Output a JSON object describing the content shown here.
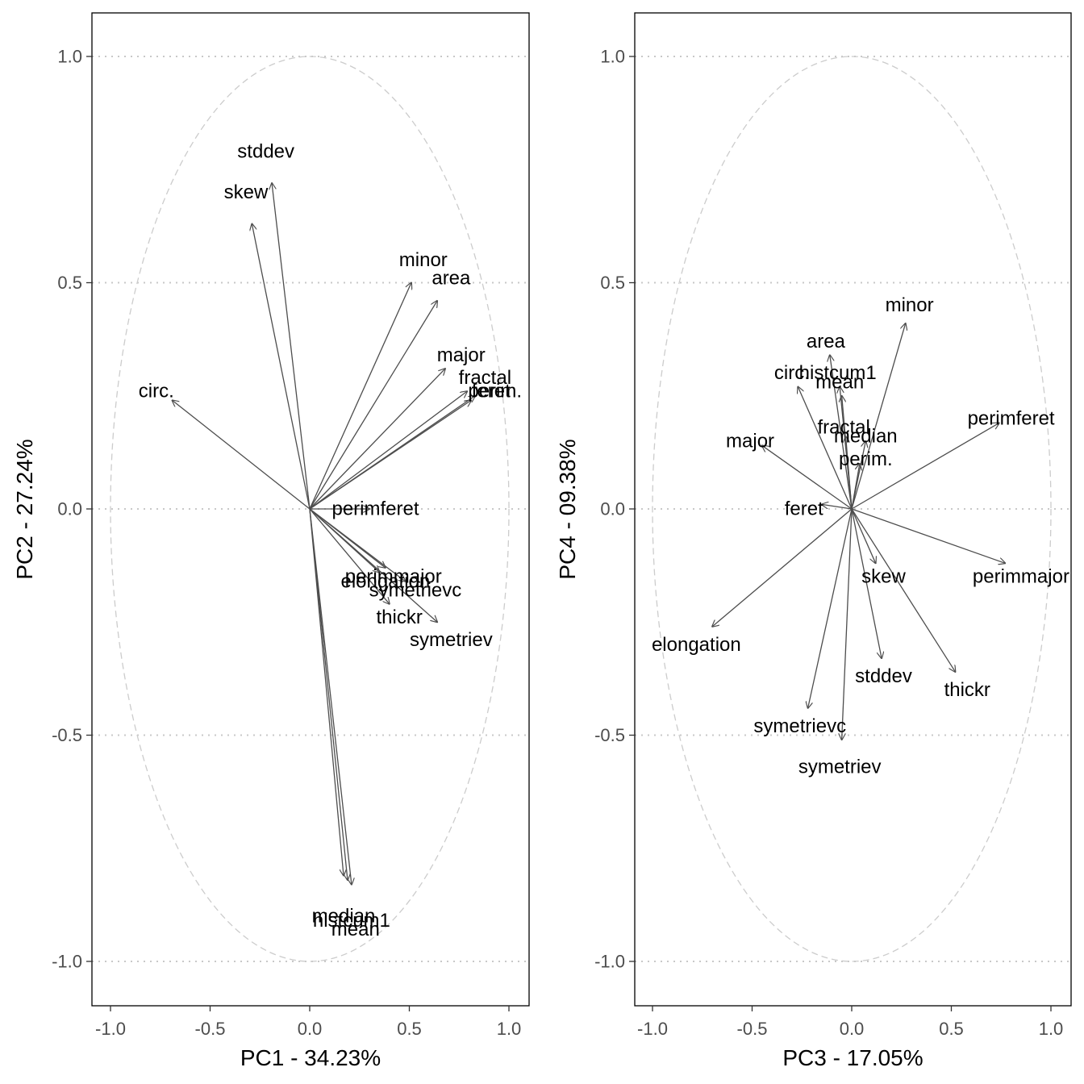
{
  "chart_data": [
    {
      "type": "scatter",
      "subtype": "pca-variable-correlation-circle",
      "xlabel": "PC1 - 34.23%",
      "ylabel": "PC2 - 27.24%",
      "xlim": [
        -1.1,
        1.1
      ],
      "ylim": [
        -1.1,
        1.1
      ],
      "xticks": [
        "-1.0",
        "-0.5",
        "0.0",
        "0.5",
        "1.0"
      ],
      "yticks": [
        "-1.0",
        "-0.5",
        "0.0",
        "0.5",
        "1.0"
      ],
      "grid": "horizontal dotted",
      "variables": [
        {
          "name": "stddev",
          "x": -0.19,
          "y": 0.72,
          "lx": -0.22,
          "ly": 0.79
        },
        {
          "name": "skew",
          "x": -0.29,
          "y": 0.63,
          "lx": -0.32,
          "ly": 0.7
        },
        {
          "name": "minor",
          "x": 0.51,
          "y": 0.5,
          "lx": 0.57,
          "ly": 0.55
        },
        {
          "name": "area",
          "x": 0.64,
          "y": 0.46,
          "lx": 0.71,
          "ly": 0.51
        },
        {
          "name": "major",
          "x": 0.68,
          "y": 0.31,
          "lx": 0.76,
          "ly": 0.34
        },
        {
          "name": "fractal",
          "x": 0.79,
          "y": 0.26,
          "lx": 0.88,
          "ly": 0.29
        },
        {
          "name": "feret",
          "x": 0.81,
          "y": 0.24,
          "lx": 0.91,
          "ly": 0.26
        },
        {
          "name": "perim.",
          "x": 0.83,
          "y": 0.25,
          "lx": 0.93,
          "ly": 0.26
        },
        {
          "name": "circ.",
          "x": -0.69,
          "y": 0.24,
          "lx": -0.77,
          "ly": 0.26
        },
        {
          "name": "perimferet",
          "x": 0.3,
          "y": 0.0,
          "lx": 0.33,
          "ly": 0.0
        },
        {
          "name": "perimmajor",
          "x": 0.38,
          "y": -0.13,
          "lx": 0.42,
          "ly": -0.15
        },
        {
          "name": "elongation",
          "x": 0.35,
          "y": -0.14,
          "lx": 0.38,
          "ly": -0.16
        },
        {
          "name": "symetrievc",
          "x": 0.48,
          "y": -0.16,
          "lx": 0.53,
          "ly": -0.18
        },
        {
          "name": "thickr",
          "x": 0.4,
          "y": -0.21,
          "lx": 0.45,
          "ly": -0.24
        },
        {
          "name": "symetriev",
          "x": 0.64,
          "y": -0.25,
          "lx": 0.71,
          "ly": -0.29
        },
        {
          "name": "median",
          "x": 0.17,
          "y": -0.81,
          "lx": 0.17,
          "ly": -0.9
        },
        {
          "name": "histcum1",
          "x": 0.19,
          "y": -0.82,
          "lx": 0.21,
          "ly": -0.91
        },
        {
          "name": "mean",
          "x": 0.21,
          "y": -0.83,
          "lx": 0.23,
          "ly": -0.93
        }
      ]
    },
    {
      "type": "scatter",
      "subtype": "pca-variable-correlation-circle",
      "xlabel": "PC3 - 17.05%",
      "ylabel": "PC4 - 09.38%",
      "xlim": [
        -1.1,
        1.1
      ],
      "ylim": [
        -1.1,
        1.1
      ],
      "xticks": [
        "-1.0",
        "-0.5",
        "0.0",
        "0.5",
        "1.0"
      ],
      "yticks": [
        "-1.0",
        "-0.5",
        "0.0",
        "0.5",
        "1.0"
      ],
      "grid": "horizontal dotted",
      "variables": [
        {
          "name": "minor",
          "x": 0.27,
          "y": 0.41,
          "lx": 0.29,
          "ly": 0.45
        },
        {
          "name": "area",
          "x": -0.11,
          "y": 0.34,
          "lx": -0.13,
          "ly": 0.37
        },
        {
          "name": "circ.",
          "x": -0.27,
          "y": 0.27,
          "lx": -0.3,
          "ly": 0.3
        },
        {
          "name": "histcum1",
          "x": -0.06,
          "y": 0.27,
          "lx": -0.07,
          "ly": 0.3
        },
        {
          "name": "mean",
          "x": -0.05,
          "y": 0.25,
          "lx": -0.06,
          "ly": 0.28
        },
        {
          "name": "perimferet",
          "x": 0.74,
          "y": 0.19,
          "lx": 0.8,
          "ly": 0.2
        },
        {
          "name": "fractal",
          "x": -0.03,
          "y": 0.16,
          "lx": -0.04,
          "ly": 0.18
        },
        {
          "name": "median",
          "x": 0.07,
          "y": 0.15,
          "lx": 0.07,
          "ly": 0.16
        },
        {
          "name": "major",
          "x": -0.45,
          "y": 0.14,
          "lx": -0.51,
          "ly": 0.15
        },
        {
          "name": "perim.",
          "x": 0.04,
          "y": 0.1,
          "lx": 0.07,
          "ly": 0.11
        },
        {
          "name": "feret",
          "x": -0.15,
          "y": 0.01,
          "lx": -0.24,
          "ly": 0.0
        },
        {
          "name": "perimmajor",
          "x": 0.77,
          "y": -0.12,
          "lx": 0.85,
          "ly": -0.15
        },
        {
          "name": "skew",
          "x": 0.12,
          "y": -0.12,
          "lx": 0.16,
          "ly": -0.15
        },
        {
          "name": "elongation",
          "x": -0.7,
          "y": -0.26,
          "lx": -0.78,
          "ly": -0.3
        },
        {
          "name": "stddev",
          "x": 0.15,
          "y": -0.33,
          "lx": 0.16,
          "ly": -0.37
        },
        {
          "name": "thickr",
          "x": 0.52,
          "y": -0.36,
          "lx": 0.58,
          "ly": -0.4
        },
        {
          "name": "symetrievc",
          "x": -0.22,
          "y": -0.44,
          "lx": -0.26,
          "ly": -0.48
        },
        {
          "name": "symetriev",
          "x": -0.05,
          "y": -0.51,
          "lx": -0.06,
          "ly": -0.57
        }
      ]
    }
  ]
}
